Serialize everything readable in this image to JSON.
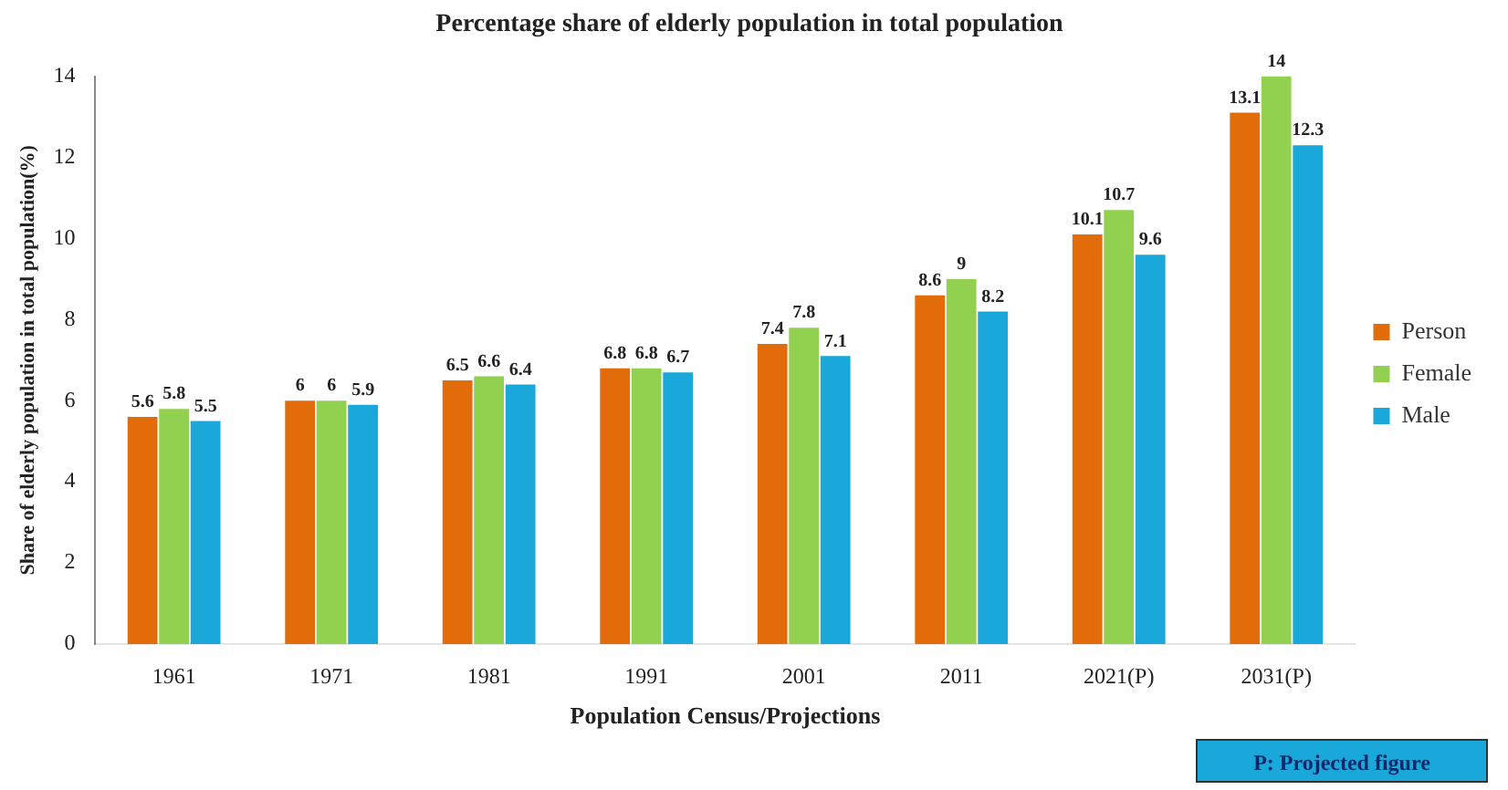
{
  "chart_data": {
    "type": "bar",
    "title": "Percentage share of elderly population in total population",
    "xlabel": "Population Census/Projections",
    "ylabel": "Share of elderly population in total population(%)",
    "categories": [
      "1961",
      "1971",
      "1981",
      "1991",
      "2001",
      "2011",
      "2021(P)",
      "2031(P)"
    ],
    "series": [
      {
        "name": "Person",
        "color": "#e36c0a",
        "values": [
          5.6,
          6,
          6.5,
          6.8,
          7.4,
          8.6,
          10.1,
          13.1
        ]
      },
      {
        "name": "Female",
        "color": "#92d050",
        "values": [
          5.8,
          6,
          6.6,
          6.8,
          7.8,
          9,
          10.7,
          14
        ]
      },
      {
        "name": "Male",
        "color": "#1aa7d9",
        "values": [
          5.5,
          5.9,
          6.4,
          6.7,
          7.1,
          8.2,
          9.6,
          12.3
        ]
      }
    ],
    "ylim": [
      0,
      14
    ],
    "yticks": [
      0,
      2,
      4,
      6,
      8,
      10,
      12,
      14
    ],
    "grid": false,
    "legend": "right",
    "data_labels": true,
    "annotations": [
      "P: Projected figure"
    ]
  }
}
